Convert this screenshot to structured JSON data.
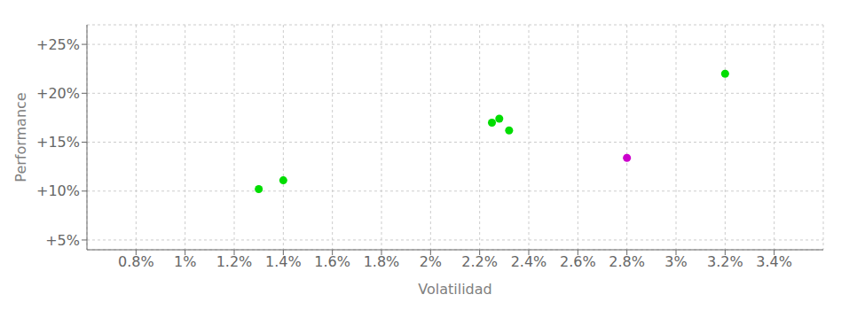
{
  "chart_data": {
    "type": "scatter",
    "xlabel": "Volatilidad",
    "ylabel": "Performance",
    "xlim": [
      0.006,
      0.036
    ],
    "ylim": [
      0.04,
      0.27
    ],
    "xticks": [
      {
        "value": 0.008,
        "label": "0.8%"
      },
      {
        "value": 0.01,
        "label": "1%"
      },
      {
        "value": 0.012,
        "label": "1.2%"
      },
      {
        "value": 0.014,
        "label": "1.4%"
      },
      {
        "value": 0.016,
        "label": "1.6%"
      },
      {
        "value": 0.018,
        "label": "1.8%"
      },
      {
        "value": 0.02,
        "label": "2%"
      },
      {
        "value": 0.022,
        "label": "2.2%"
      },
      {
        "value": 0.024,
        "label": "2.4%"
      },
      {
        "value": 0.026,
        "label": "2.6%"
      },
      {
        "value": 0.028,
        "label": "2.8%"
      },
      {
        "value": 0.03,
        "label": "3%"
      },
      {
        "value": 0.032,
        "label": "3.2%"
      },
      {
        "value": 0.034,
        "label": "3.4%"
      }
    ],
    "yticks": [
      {
        "value": 0.05,
        "label": "+5%"
      },
      {
        "value": 0.1,
        "label": "+10%"
      },
      {
        "value": 0.15,
        "label": "+15%"
      },
      {
        "value": 0.2,
        "label": "+20%"
      },
      {
        "value": 0.25,
        "label": "+25%"
      }
    ],
    "grid": true,
    "series": [
      {
        "color": "#00dd00",
        "x": [
          0.013,
          0.014,
          0.0225,
          0.0228,
          0.0232,
          0.032
        ],
        "values": [
          0.102,
          0.111,
          0.17,
          0.174,
          0.162,
          0.22
        ]
      },
      {
        "color": "#cc00cc",
        "x": [
          0.028
        ],
        "values": [
          0.134
        ]
      }
    ]
  }
}
